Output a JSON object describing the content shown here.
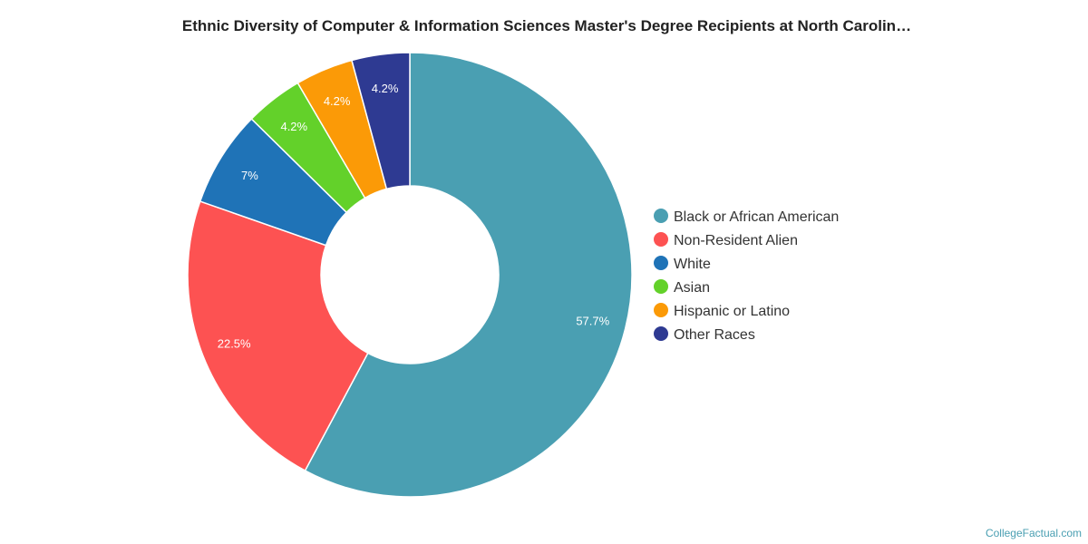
{
  "chart_data": {
    "type": "pie",
    "variant": "donut",
    "title": "Ethnic Diversity of Computer & Information Sciences Master's Degree Recipients at North Carolin…",
    "legend_position": "right",
    "series": [
      {
        "name": "Black or African American",
        "value": 57.7,
        "label": "57.7%",
        "color": "#4a9fb2"
      },
      {
        "name": "Non-Resident Alien",
        "value": 22.5,
        "label": "22.5%",
        "color": "#fd5252"
      },
      {
        "name": "White",
        "value": 7,
        "label": "7%",
        "color": "#1f73b7"
      },
      {
        "name": "Asian",
        "value": 4.2,
        "label": "4.2%",
        "color": "#63d12a"
      },
      {
        "name": "Hispanic or Latino",
        "value": 4.2,
        "label": "4.2%",
        "color": "#fb9a07"
      },
      {
        "name": "Other Races",
        "value": 4.2,
        "label": "4.2%",
        "color": "#2e3a92"
      }
    ]
  },
  "credit": "CollegeFactual.com"
}
